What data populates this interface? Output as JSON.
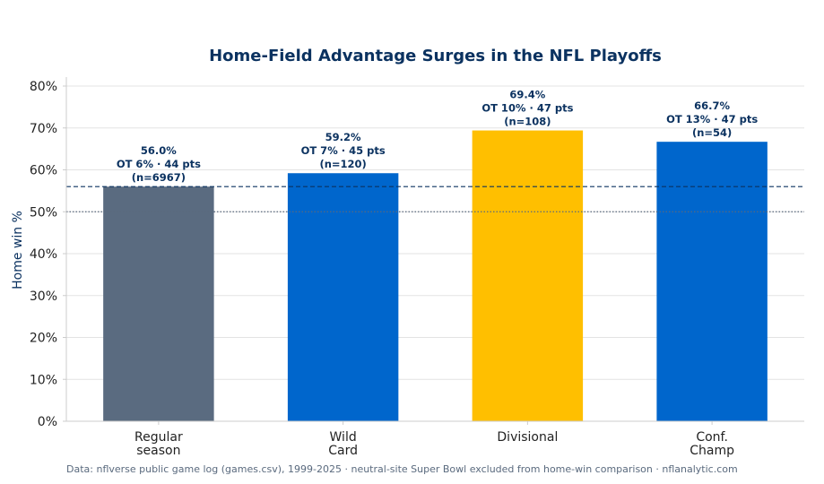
{
  "chart_data": {
    "type": "bar",
    "title": "Home-Field Advantage Surges in the NFL Playoffs",
    "xlabel": "",
    "ylabel": "Home win %",
    "ylim": [
      0,
      80
    ],
    "y_ticks": [
      0,
      10,
      20,
      30,
      40,
      50,
      60,
      70,
      80
    ],
    "y_tick_labels": [
      "0%",
      "10%",
      "20%",
      "30%",
      "40%",
      "50%",
      "60%",
      "70%",
      "80%"
    ],
    "grid": true,
    "reference_lines": [
      {
        "value": 56.0,
        "style": "dashed",
        "color": "#0b3260"
      },
      {
        "value": 50.0,
        "style": "dotted",
        "color": "#5a6a7e"
      }
    ],
    "categories": [
      [
        "Regular",
        "season"
      ],
      [
        "Wild",
        "Card"
      ],
      [
        "Divisional"
      ],
      [
        "Conf.",
        "Champ"
      ]
    ],
    "values": [
      56.0,
      59.2,
      69.4,
      66.7
    ],
    "colors": [
      "#5a6b80",
      "#0066cc",
      "#ffbf00",
      "#0066cc"
    ],
    "data_labels": [
      [
        "56.0%",
        "OT 6% · 44 pts",
        "(n=6967)"
      ],
      [
        "59.2%",
        "OT 7% · 45 pts",
        "(n=120)"
      ],
      [
        "69.4%",
        "OT 10% · 47 pts",
        "(n=108)"
      ],
      [
        "66.7%",
        "OT 13% · 47 pts",
        "(n=54)"
      ]
    ]
  },
  "footer": "Data: nflverse public game log (games.csv), 1999-2025 · neutral-site Super Bowl excluded from home-win comparison · nflanalytic.com"
}
